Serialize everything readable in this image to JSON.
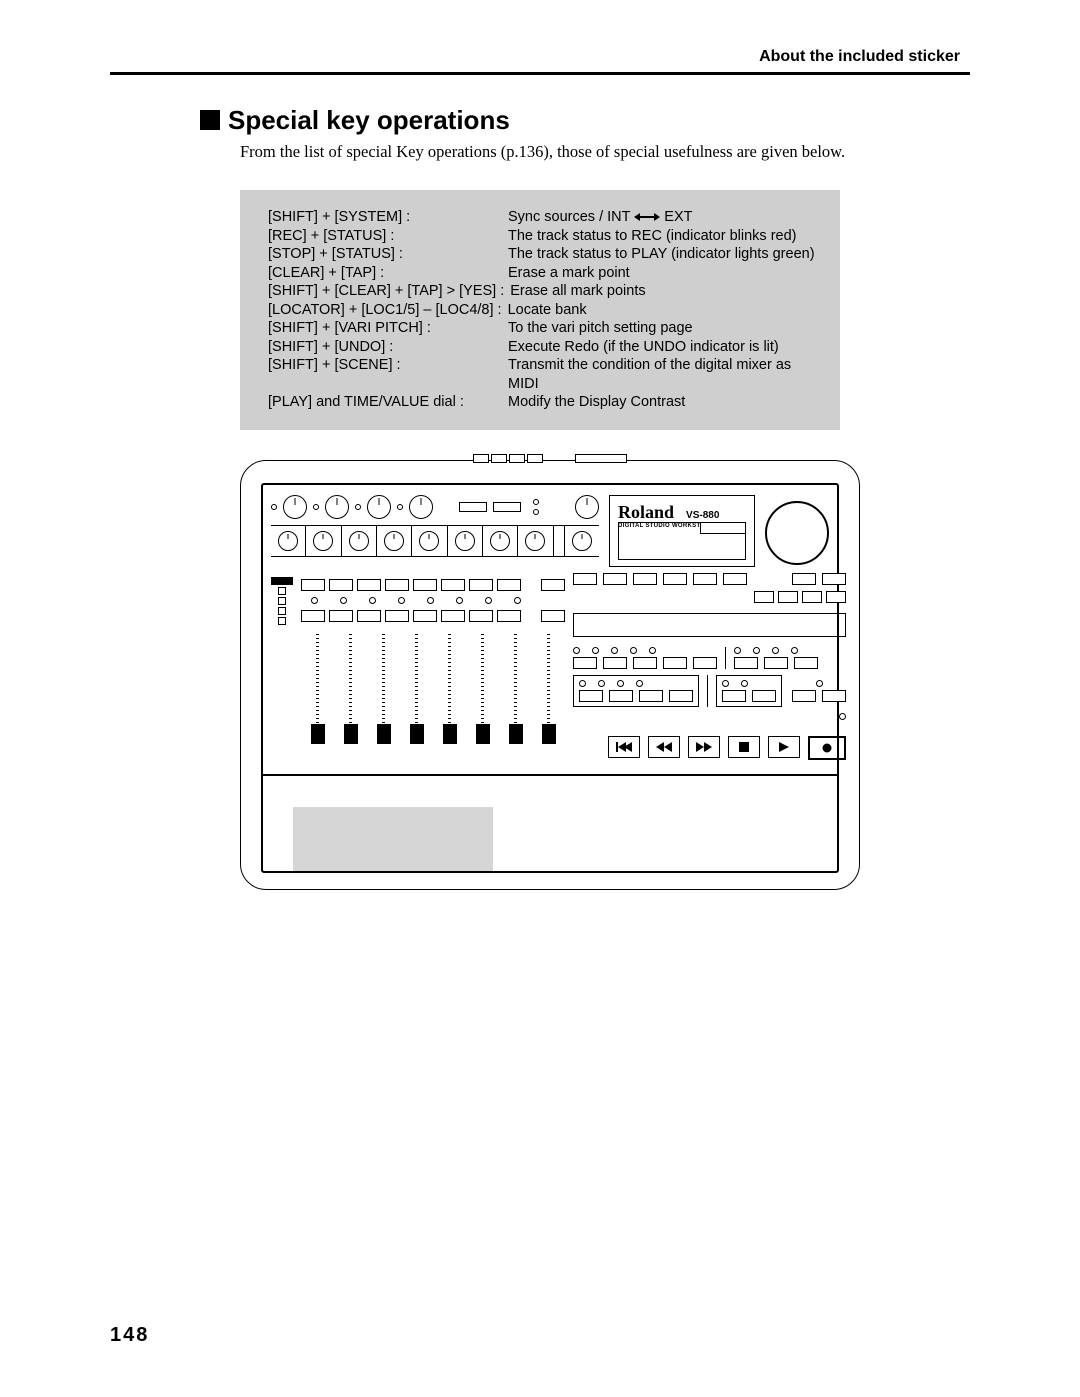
{
  "header": {
    "right": "About the included sticker"
  },
  "section": {
    "title": "Special key operations",
    "intro": "From the list of special Key operations (p.136), those of special usefulness are given below."
  },
  "shortcuts": [
    {
      "k": "[SHIFT] + [SYSTEM] :",
      "v": "Sync sources / INT",
      "sync": true,
      "v2": "EXT"
    },
    {
      "k": "[REC] + [STATUS] :",
      "v": "The track status to REC (indicator blinks red)"
    },
    {
      "k": "[STOP] + [STATUS] :",
      "v": "The track status to PLAY (indicator lights green)"
    },
    {
      "k": "[CLEAR] + [TAP] :",
      "v": "Erase a mark point"
    },
    {
      "k": "[SHIFT] + [CLEAR] + [TAP] > [YES] :",
      "v": "Erase all mark points",
      "merge": true
    },
    {
      "k": "[LOCATOR] + [LOC1/5] – [LOC4/8] :",
      "v": "Locate bank",
      "merge": true
    },
    {
      "k": "[SHIFT] + [VARI PITCH] :",
      "v": "To the vari pitch setting page"
    },
    {
      "k": "[SHIFT] + [UNDO] :",
      "v": "Execute Redo (if the UNDO indicator is lit)"
    },
    {
      "k": "[SHIFT] + [SCENE] :",
      "v": "Transmit the condition of the digital mixer as MIDI"
    },
    {
      "k": "[PLAY] and TIME/VALUE dial :",
      "v": "Modify the Display Contrast"
    }
  ],
  "device": {
    "brand": "Roland",
    "model": "VS-880",
    "subtitle": "DIGITAL STUDIO WORKSTATION",
    "channels": 8,
    "transport": [
      "skip-back",
      "rewind",
      "forward",
      "stop",
      "play",
      "record"
    ]
  },
  "page_number": "148",
  "colors": {
    "grey_box_bg": "#cfcfcf",
    "shade_bg": "#d6d6d6",
    "text": "#000000",
    "background": "#ffffff"
  }
}
